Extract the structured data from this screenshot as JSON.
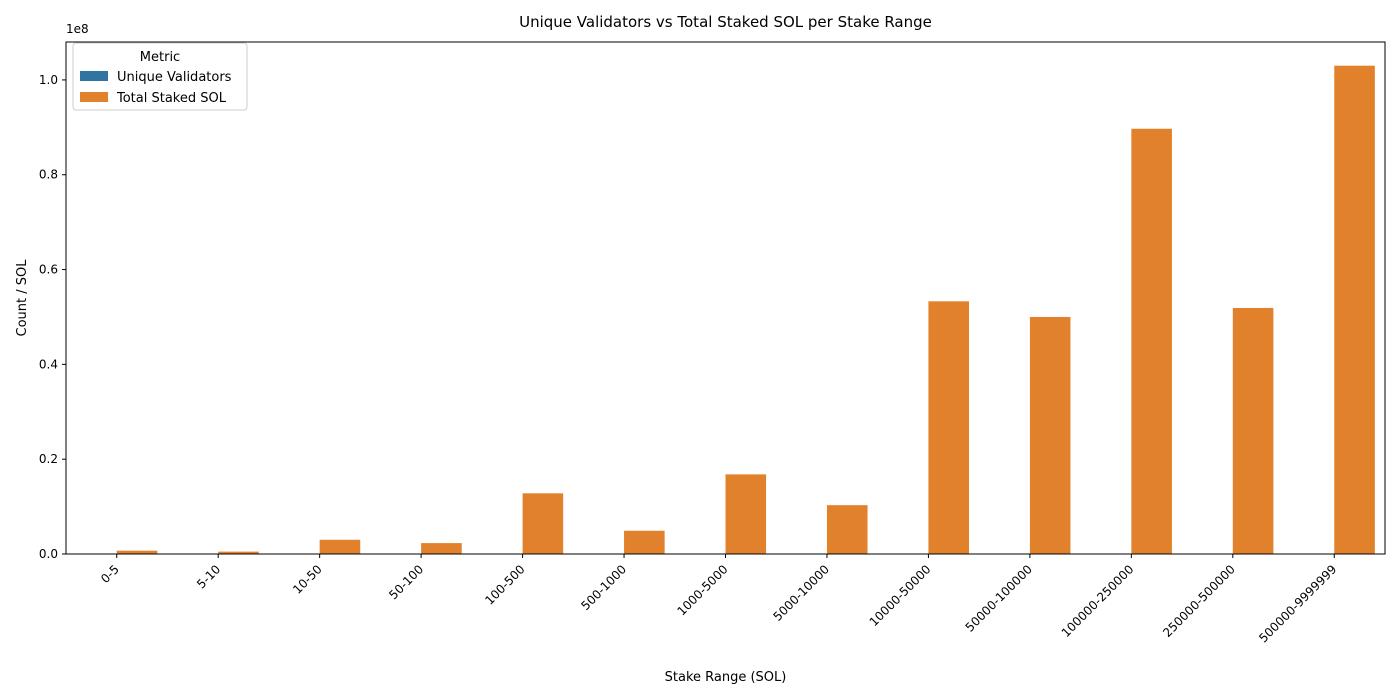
{
  "chart_data": {
    "type": "bar",
    "title": "Unique Validators vs Total Staked SOL per Stake Range",
    "xlabel": "Stake Range (SOL)",
    "ylabel": "Count / SOL",
    "y_offset_text": "1e8",
    "ylim": [
      0,
      108000000
    ],
    "yticks": [
      0,
      20000000,
      40000000,
      60000000,
      80000000,
      100000000
    ],
    "ytick_labels": [
      "0.0",
      "0.2",
      "0.4",
      "0.6",
      "0.8",
      "1.0"
    ],
    "grid": false,
    "legend": {
      "title": "Metric",
      "placement": "top-left"
    },
    "categories": [
      "0-5",
      "5-10",
      "10-50",
      "50-100",
      "100-500",
      "500-1000",
      "1000-5000",
      "5000-10000",
      "10000-50000",
      "50000-100000",
      "100000-250000",
      "250000-500000",
      "500000-9999999"
    ],
    "series": [
      {
        "name": "Unique Validators",
        "color": "#3274a1",
        "values": [
          200,
          80,
          150,
          40,
          60,
          8,
          8,
          2,
          2,
          1,
          1,
          1,
          1
        ]
      },
      {
        "name": "Total Staked SOL",
        "color": "#e1812c",
        "values": [
          700000,
          500000,
          3000000,
          2300000,
          12800000,
          4900000,
          16800000,
          10300000,
          53300000,
          50000000,
          89700000,
          51900000,
          103000000
        ]
      }
    ]
  }
}
